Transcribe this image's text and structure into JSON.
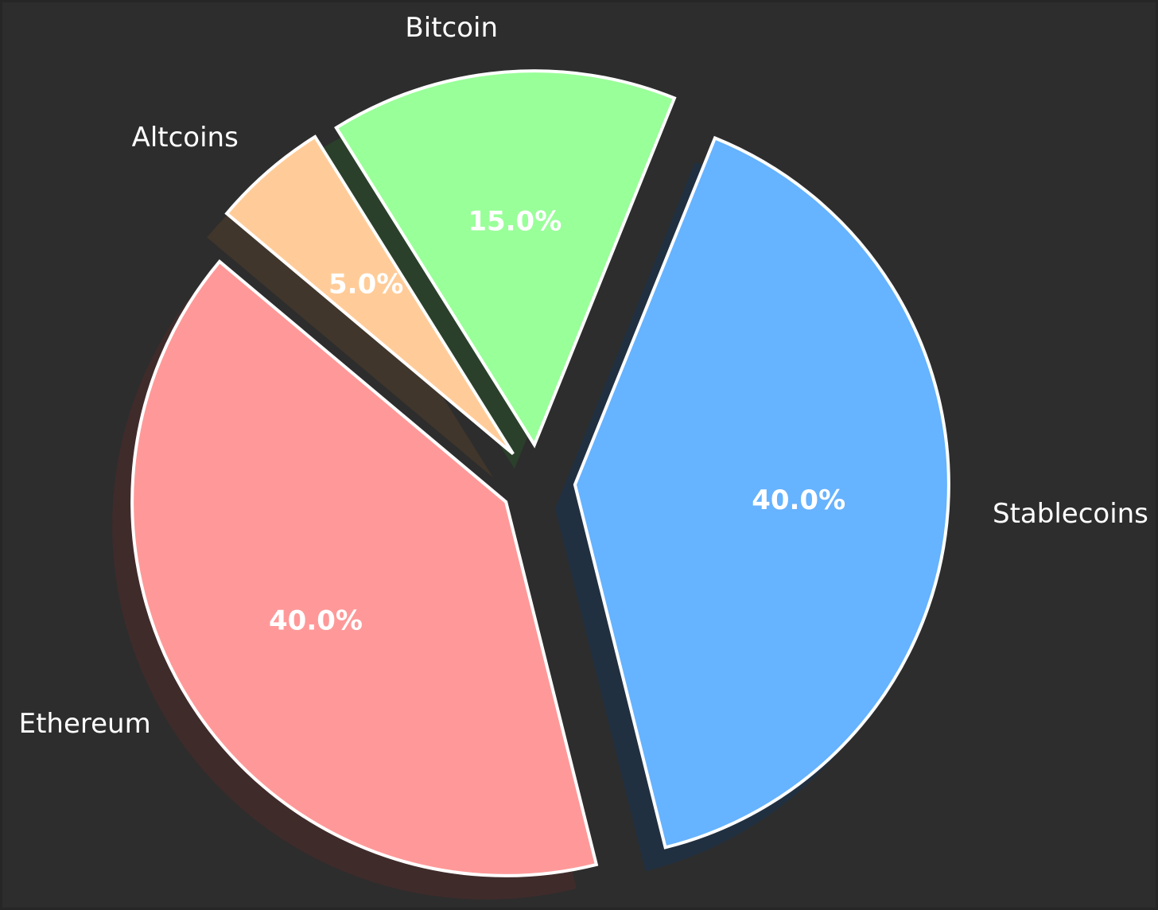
{
  "chart_data": {
    "type": "pie",
    "slices": [
      {
        "label": "Ethereum",
        "value": 40.0,
        "pct_label": "40.0%",
        "color": "#ff9999",
        "explode": 0.1
      },
      {
        "label": "Stablecoins",
        "value": 40.0,
        "pct_label": "40.0%",
        "color": "#66b3ff",
        "explode": 0.1
      },
      {
        "label": "Bitcoin",
        "value": 15.0,
        "pct_label": "15.0%",
        "color": "#99ff99",
        "explode": 0.1
      },
      {
        "label": "Altcoins",
        "value": 5.0,
        "pct_label": "5.0%",
        "color": "#ffcc99",
        "explode": 0.1
      }
    ],
    "background": "#2d2d2d",
    "edge_color": "#ffffff",
    "shadow": true,
    "legend": "none"
  }
}
